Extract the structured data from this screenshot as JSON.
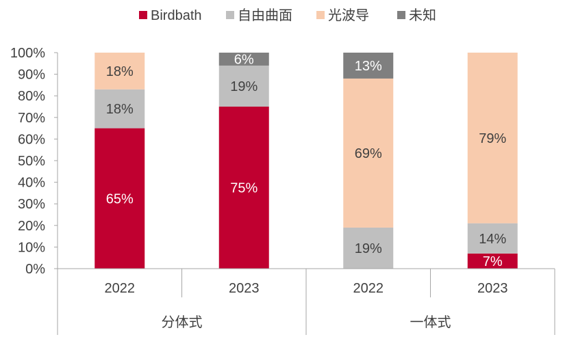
{
  "chart_data": {
    "type": "bar",
    "stacked": true,
    "categories": [
      {
        "group": "分体式",
        "year": "2022"
      },
      {
        "group": "分体式",
        "year": "2023"
      },
      {
        "group": "一体式",
        "year": "2022"
      },
      {
        "group": "一体式",
        "year": "2023"
      }
    ],
    "groups": [
      "分体式",
      "一体式"
    ],
    "series": [
      {
        "name": "Birdbath",
        "color": "#C00030",
        "label_color": "#FFFFFF",
        "values": [
          65,
          75,
          0,
          7
        ]
      },
      {
        "name": "自由曲面",
        "color": "#BFBFBF",
        "label_color": "#404040",
        "values": [
          18,
          19,
          19,
          14
        ]
      },
      {
        "name": "光波导",
        "color": "#F8CBAD",
        "label_color": "#404040",
        "values": [
          18,
          0,
          69,
          79
        ]
      },
      {
        "name": "未知",
        "color": "#7F7F7F",
        "label_color": "#FFFFFF",
        "values": [
          0,
          6,
          13,
          0
        ]
      }
    ],
    "ylim": [
      0,
      100
    ],
    "yticks": [
      "0%",
      "10%",
      "20%",
      "30%",
      "40%",
      "50%",
      "60%",
      "70%",
      "80%",
      "90%",
      "100%"
    ],
    "legend_position": "top",
    "grid": false
  }
}
